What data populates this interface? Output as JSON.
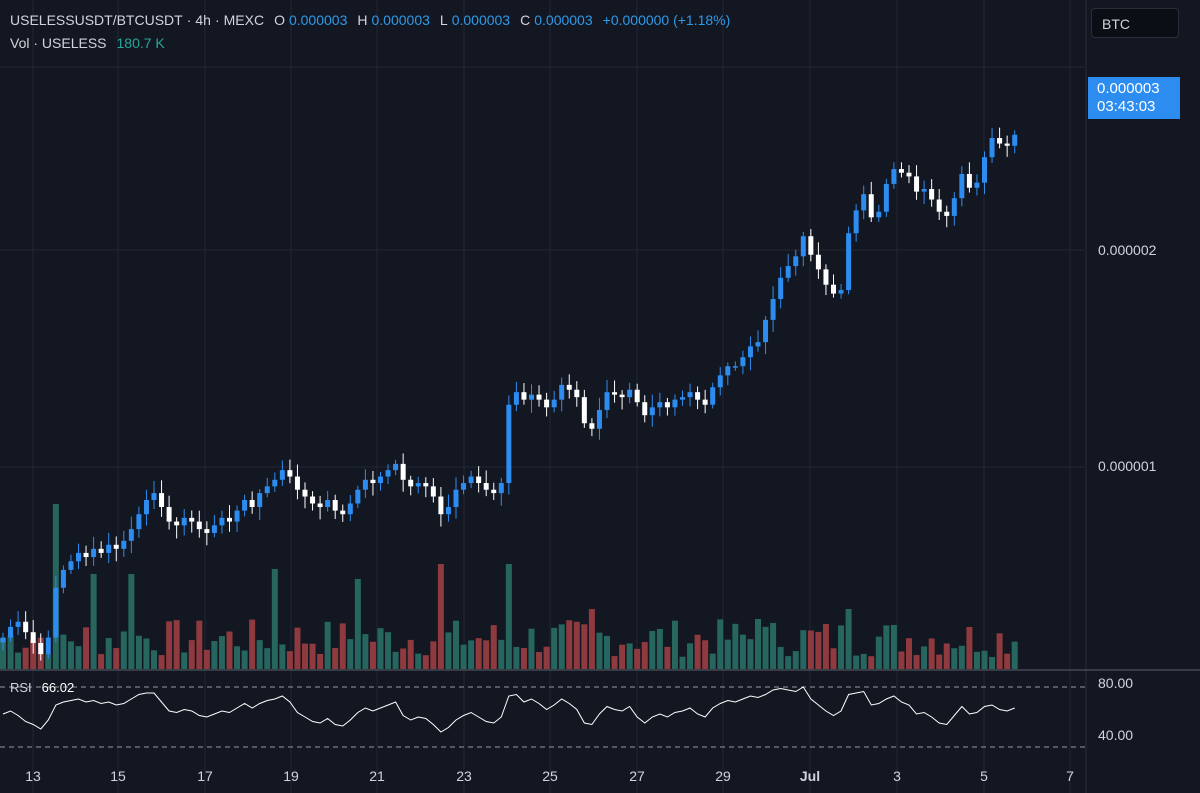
{
  "header": {
    "symbol": "USELESSUSDT/BTCUSDT",
    "interval": "4h",
    "exchange": "MEXC",
    "open_label": "O",
    "open": "0.000003",
    "high_label": "H",
    "high": "0.000003",
    "low_label": "L",
    "low": "0.000003",
    "close_label": "C",
    "close": "0.000003",
    "change": "+0.000000 (+1.18%)",
    "separator": "·"
  },
  "volume_legend": {
    "label": "Vol · USELESS",
    "value": "180.7 K"
  },
  "currency_button": "BTC",
  "last_price_tag": {
    "price": "0.000003",
    "countdown": "03:43:03"
  },
  "price_axis": {
    "ticks": [
      "0.000002",
      "0.000001"
    ]
  },
  "rsi_legend": {
    "name": "RSI",
    "value": "66.02"
  },
  "rsi_axis": {
    "ticks": [
      "80.00",
      "40.00"
    ]
  },
  "colors": {
    "background": "#131722",
    "up_candle": "#2d8cf0",
    "down_candle": "#ffffff",
    "volume_up": "#26665e",
    "volume_down": "#8e3a3f",
    "rsi_line": "#ffffff",
    "grid": "#232734"
  },
  "chart_data": [
    {
      "type": "candlestick",
      "title": "USELESSUSDT/BTCUSDT · 4h · MEXC",
      "x_ticks": [
        "13",
        "15",
        "17",
        "19",
        "21",
        "23",
        "25",
        "27",
        "29",
        "Jul",
        "3",
        "5",
        "7"
      ],
      "y_ticks": [
        1e-06,
        2e-06
      ],
      "grid": true,
      "closes": [
        5.8e-07,
        6e-07,
        6.1e-07,
        5.9e-07,
        5.7e-07,
        5.5e-07,
        5.8e-07,
        6.8e-07,
        7.2e-07,
        7.4e-07,
        7.6e-07,
        7.5e-07,
        7.7e-07,
        7.6e-07,
        7.8e-07,
        7.7e-07,
        7.9e-07,
        8.2e-07,
        8.6e-07,
        9e-07,
        9.2e-07,
        8.8e-07,
        8.4e-07,
        8.3e-07,
        8.5e-07,
        8.4e-07,
        8.2e-07,
        8.1e-07,
        8.3e-07,
        8.5e-07,
        8.4e-07,
        8.7e-07,
        9e-07,
        8.8e-07,
        9.2e-07,
        9.4e-07,
        9.6e-07,
        9.9e-07,
        9.7e-07,
        9.3e-07,
        9.1e-07,
        8.9e-07,
        8.8e-07,
        9e-07,
        8.7e-07,
        8.6e-07,
        8.9e-07,
        9.3e-07,
        9.6e-07,
        9.5e-07,
        9.7e-07,
        9.9e-07,
        1.01e-06,
        9.6e-07,
        9.4e-07,
        9.5e-07,
        9.4e-07,
        9.1e-07,
        8.6e-07,
        8.8e-07,
        9.3e-07,
        9.5e-07,
        9.7e-07,
        9.5e-07,
        9.3e-07,
        9.2e-07,
        9.5e-07,
        1.22e-06,
        1.27e-06,
        1.24e-06,
        1.26e-06,
        1.24e-06,
        1.21e-06,
        1.24e-06,
        1.3e-06,
        1.28e-06,
        1.25e-06,
        1.15e-06,
        1.13e-06,
        1.2e-06,
        1.27e-06,
        1.26e-06,
        1.25e-06,
        1.28e-06,
        1.23e-06,
        1.18e-06,
        1.21e-06,
        1.23e-06,
        1.21e-06,
        1.24e-06,
        1.25e-06,
        1.27e-06,
        1.24e-06,
        1.22e-06,
        1.29e-06,
        1.34e-06,
        1.38e-06,
        1.38e-06,
        1.42e-06,
        1.47e-06,
        1.49e-06,
        1.6e-06,
        1.71e-06,
        1.83e-06,
        1.9e-06,
        1.96e-06,
        2.09e-06,
        1.97e-06,
        1.88e-06,
        1.79e-06,
        1.74e-06,
        1.76e-06,
        2.11e-06,
        2.27e-06,
        2.39e-06,
        2.22e-06,
        2.26e-06,
        2.47e-06,
        2.59e-06,
        2.56e-06,
        2.53e-06,
        2.41e-06,
        2.43e-06,
        2.35e-06,
        2.26e-06,
        2.23e-06,
        2.36e-06,
        2.55e-06,
        2.44e-06,
        2.48e-06,
        2.69e-06,
        2.86e-06,
        2.81e-06,
        2.79e-06,
        2.89e-06
      ],
      "volume_unit": "USELESS"
    },
    {
      "type": "line",
      "title": "RSI",
      "last_value": 66.02,
      "levels": [
        80,
        40
      ],
      "ylim": [
        30,
        90
      ],
      "values": [
        62,
        64,
        61,
        57,
        55,
        52,
        58,
        68,
        70,
        71,
        72,
        70,
        71,
        69,
        70,
        68,
        69,
        72,
        75,
        76,
        76,
        70,
        64,
        63,
        65,
        64,
        61,
        60,
        62,
        64,
        63,
        66,
        69,
        66,
        69,
        71,
        72,
        74,
        70,
        63,
        60,
        57,
        56,
        59,
        55,
        54,
        58,
        63,
        66,
        64,
        66,
        68,
        70,
        61,
        58,
        60,
        59,
        55,
        50,
        53,
        58,
        61,
        63,
        60,
        57,
        56,
        60,
        74,
        75,
        70,
        72,
        69,
        65,
        68,
        72,
        69,
        65,
        56,
        55,
        62,
        67,
        65,
        64,
        67,
        60,
        56,
        60,
        62,
        60,
        63,
        64,
        66,
        62,
        60,
        66,
        69,
        71,
        70,
        72,
        74,
        73,
        75,
        78,
        79,
        78,
        77,
        80,
        72,
        68,
        64,
        61,
        64,
        75,
        76,
        77,
        68,
        69,
        72,
        74,
        70,
        68,
        62,
        63,
        60,
        56,
        55,
        61,
        67,
        62,
        63,
        67,
        68,
        65,
        64,
        66
      ],
      "xlabel": "",
      "ylabel": ""
    }
  ]
}
